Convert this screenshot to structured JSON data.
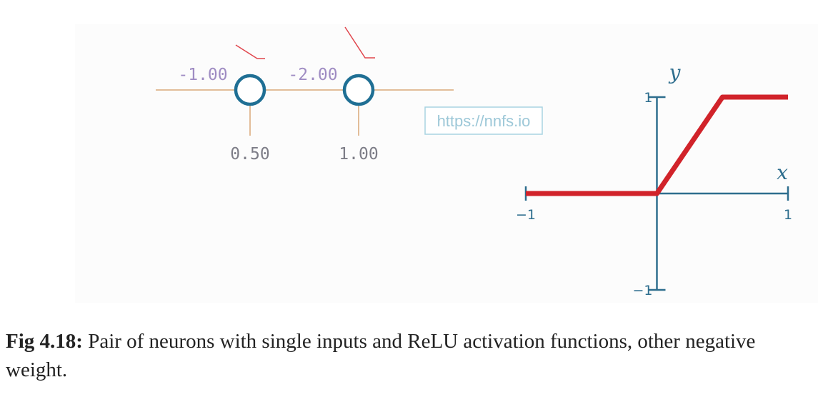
{
  "network": {
    "neuron1": {
      "weight": "-1.00",
      "bias": "0.50"
    },
    "neuron2": {
      "weight": "-2.00",
      "bias": "1.00"
    }
  },
  "watermark": "https://nnfs.io",
  "chart_data": {
    "type": "line",
    "series": [
      {
        "x": [
          -1,
          0,
          0.5,
          1
        ],
        "y": [
          0,
          0,
          1,
          1
        ]
      }
    ],
    "xlabel": "x",
    "ylabel": "y",
    "xlim": [
      -1,
      1
    ],
    "ylim": [
      -1,
      1
    ],
    "x_tick_labels": [
      "−1",
      "1"
    ],
    "y_tick_labels": [
      "−1",
      "1"
    ]
  },
  "colors": {
    "line": "#d1232a",
    "axis": "#2e6e8e",
    "neuron": "#1f6f94",
    "connection": "#d9a878",
    "weight_text": "#9f8cc3",
    "bias_text": "#7d7d87",
    "weight_tick": "#e0464d",
    "watermark": "#9dc8d8"
  },
  "caption": {
    "label": "Fig 4.18:",
    "text": " Pair of neurons with single inputs and ReLU activation functions, other negative weight."
  }
}
